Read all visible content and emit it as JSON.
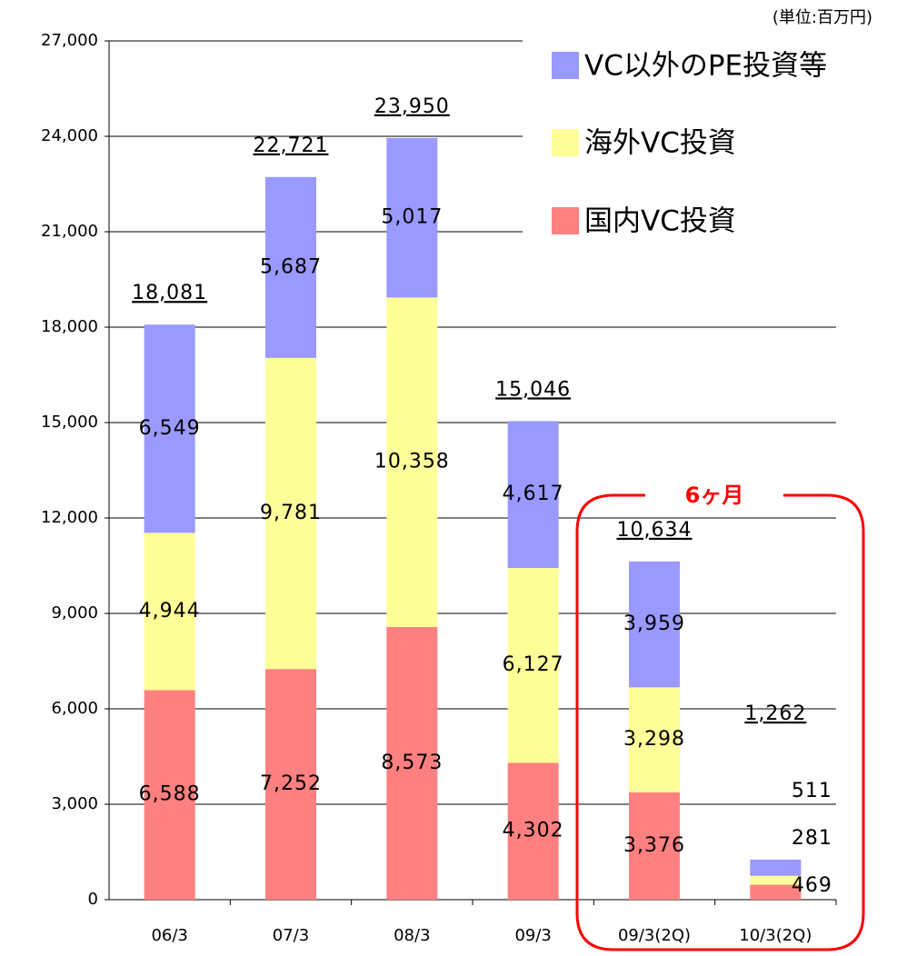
{
  "chart_data": {
    "type": "stacked_bar",
    "unit_note": "(単位:百万円)",
    "annotation": "6ヶ月",
    "categories": [
      "06/3",
      "07/3",
      "08/3",
      "09/3",
      "09/3(2Q)",
      "10/3(2Q)"
    ],
    "series": [
      {
        "name": "国内VC投資",
        "color": "#ff8080",
        "values": [
          6588,
          7252,
          8573,
          4302,
          3376,
          469
        ],
        "value_labels": [
          "6,588",
          "7,252",
          "8,573",
          "4,302",
          "3,376",
          "469"
        ]
      },
      {
        "name": "海外VC投資",
        "color": "#ffff99",
        "values": [
          4944,
          9781,
          10358,
          6127,
          3298,
          281
        ],
        "value_labels": [
          "4,944",
          "9,781",
          "10,358",
          "6,127",
          "3,298",
          "281"
        ]
      },
      {
        "name": "VC以外のPE投資等",
        "color": "#9999ff",
        "values": [
          6549,
          5687,
          5017,
          4617,
          3959,
          511
        ],
        "value_labels": [
          "6,549",
          "5,687",
          "5,017",
          "4,617",
          "3,959",
          "511"
        ]
      }
    ],
    "totals": {
      "values": [
        18081,
        22721,
        23950,
        15046,
        10634,
        1262
      ],
      "value_labels": [
        "18,081",
        "22,721",
        "23,950",
        "15,046",
        "10,634",
        "1,262"
      ]
    },
    "ylim": [
      0,
      27000
    ],
    "yticks": [
      0,
      {
        "value": 3000,
        "label": "3,000"
      },
      {
        "value": 6000,
        "label": "6,000"
      },
      {
        "value": 9000,
        "label": "9,000"
      },
      {
        "value": 12000,
        "label": "12,000"
      },
      {
        "value": 15000,
        "label": "15,000"
      },
      {
        "value": 18000,
        "label": "18,000"
      },
      {
        "value": 21000,
        "label": "21,000"
      },
      {
        "value": 24000,
        "label": "24,000"
      },
      {
        "value": 27000,
        "label": "27,000"
      }
    ],
    "grid": true
  }
}
